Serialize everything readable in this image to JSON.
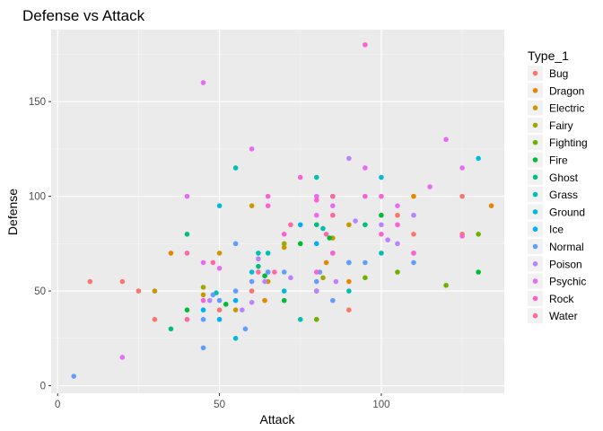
{
  "chart_data": {
    "type": "scatter",
    "title": "Defense vs Attack",
    "xlabel": "Attack",
    "ylabel": "Defense",
    "xlim": [
      -2,
      138
    ],
    "ylim": [
      -4,
      188
    ],
    "x_ticks": [
      0,
      50,
      100
    ],
    "y_ticks": [
      0,
      50,
      100,
      150
    ],
    "grid": true,
    "legend": {
      "title": "Type_1",
      "position": "right"
    },
    "series": [
      {
        "name": "Bug",
        "color": "#F8766D",
        "points": [
          [
            10,
            55
          ],
          [
            20,
            55
          ],
          [
            25,
            50
          ],
          [
            30,
            35
          ],
          [
            50,
            40
          ],
          [
            60,
            50
          ],
          [
            65,
            60
          ],
          [
            80,
            50
          ],
          [
            90,
            40
          ],
          [
            105,
            90
          ],
          [
            110,
            80
          ],
          [
            125,
            100
          ],
          [
            125,
            80
          ]
        ]
      },
      {
        "name": "Dragon",
        "color": "#E58700",
        "points": [
          [
            35,
            70
          ],
          [
            64,
            45
          ],
          [
            83,
            65
          ],
          [
            90,
            55
          ],
          [
            110,
            100
          ],
          [
            134,
            95
          ]
        ]
      },
      {
        "name": "Electric",
        "color": "#C99800",
        "points": [
          [
            30,
            50
          ],
          [
            45,
            48
          ],
          [
            50,
            70
          ],
          [
            55,
            40
          ],
          [
            60,
            95
          ],
          [
            65,
            55
          ],
          [
            70,
            73
          ],
          [
            85,
            78
          ],
          [
            90,
            85
          ]
        ]
      },
      {
        "name": "Fairy",
        "color": "#A3A500",
        "points": [
          [
            45,
            52
          ],
          [
            70,
            75
          ],
          [
            82,
            57
          ]
        ]
      },
      {
        "name": "Fighting",
        "color": "#6BB100",
        "points": [
          [
            80,
            35
          ],
          [
            95,
            57
          ],
          [
            105,
            60
          ],
          [
            120,
            53
          ],
          [
            130,
            80
          ]
        ]
      },
      {
        "name": "Fire",
        "color": "#00BA38",
        "points": [
          [
            40,
            40
          ],
          [
            52,
            43
          ],
          [
            64,
            58
          ],
          [
            70,
            45
          ],
          [
            75,
            75
          ],
          [
            84,
            78
          ],
          [
            100,
            90
          ],
          [
            130,
            60
          ]
        ]
      },
      {
        "name": "Ghost",
        "color": "#00BF7D",
        "points": [
          [
            35,
            30
          ],
          [
            40,
            80
          ],
          [
            62,
            63
          ],
          [
            80,
            85
          ],
          [
            95,
            85
          ]
        ]
      },
      {
        "name": "Grass",
        "color": "#00C0AF",
        "points": [
          [
            49,
            49
          ],
          [
            55,
            115
          ],
          [
            62,
            70
          ],
          [
            65,
            70
          ],
          [
            75,
            35
          ],
          [
            80,
            110
          ],
          [
            82,
            83
          ],
          [
            90,
            50
          ],
          [
            100,
            70
          ]
        ]
      },
      {
        "name": "Ground",
        "color": "#00BCD8",
        "points": [
          [
            50,
            95
          ],
          [
            55,
            25
          ],
          [
            60,
            60
          ],
          [
            70,
            50
          ],
          [
            85,
            100
          ],
          [
            100,
            110
          ],
          [
            130,
            120
          ]
        ]
      },
      {
        "name": "Ice",
        "color": "#00B0F6",
        "points": [
          [
            45,
            40
          ],
          [
            50,
            35
          ],
          [
            55,
            45
          ],
          [
            75,
            85
          ],
          [
            80,
            75
          ],
          [
            85,
            70
          ],
          [
            90,
            65
          ]
        ]
      },
      {
        "name": "Normal",
        "color": "#619CFF",
        "points": [
          [
            5,
            5
          ],
          [
            45,
            20
          ],
          [
            45,
            35
          ],
          [
            48,
            48
          ],
          [
            50,
            45
          ],
          [
            55,
            50
          ],
          [
            55,
            75
          ],
          [
            58,
            30
          ],
          [
            60,
            55
          ],
          [
            65,
            60
          ],
          [
            70,
            60
          ],
          [
            80,
            55
          ],
          [
            81,
            60
          ],
          [
            85,
            45
          ],
          [
            90,
            65
          ],
          [
            95,
            65
          ],
          [
            110,
            65
          ],
          [
            110,
            70
          ]
        ]
      },
      {
        "name": "Poison",
        "color": "#B983FF",
        "points": [
          [
            47,
            45
          ],
          [
            57,
            40
          ],
          [
            60,
            44
          ],
          [
            62,
            67
          ],
          [
            64,
            55
          ],
          [
            72,
            57
          ],
          [
            80,
            50
          ],
          [
            86,
            55
          ],
          [
            90,
            120
          ],
          [
            92,
            87
          ],
          [
            100,
            85
          ],
          [
            102,
            77
          ],
          [
            105,
            75
          ],
          [
            110,
            90
          ]
        ]
      },
      {
        "name": "Psychic",
        "color": "#E76BF3",
        "points": [
          [
            20,
            15
          ],
          [
            40,
            100
          ],
          [
            45,
            160
          ],
          [
            45,
            65
          ],
          [
            50,
            62
          ],
          [
            60,
            125
          ],
          [
            80,
            100
          ],
          [
            80,
            90
          ],
          [
            85,
            95
          ],
          [
            95,
            115
          ],
          [
            105,
            95
          ],
          [
            115,
            105
          ],
          [
            120,
            130
          ],
          [
            125,
            115
          ]
        ]
      },
      {
        "name": "Rock",
        "color": "#FD61D1",
        "points": [
          [
            45,
            45
          ],
          [
            65,
            95
          ],
          [
            65,
            100
          ],
          [
            70,
            80
          ],
          [
            75,
            110
          ],
          [
            80,
            98
          ],
          [
            80,
            60
          ],
          [
            85,
            70
          ],
          [
            95,
            180
          ],
          [
            95,
            100
          ],
          [
            100,
            100
          ],
          [
            100,
            80
          ],
          [
            105,
            85
          ],
          [
            110,
            70
          ],
          [
            125,
            79
          ]
        ]
      },
      {
        "name": "Water",
        "color": "#FF67A4",
        "points": [
          [
            40,
            70
          ],
          [
            40,
            35
          ],
          [
            48,
            65
          ],
          [
            62,
            60
          ],
          [
            67,
            60
          ],
          [
            72,
            85
          ],
          [
            83,
            80
          ],
          [
            85,
            90
          ],
          [
            85,
            100
          ]
        ]
      }
    ]
  }
}
